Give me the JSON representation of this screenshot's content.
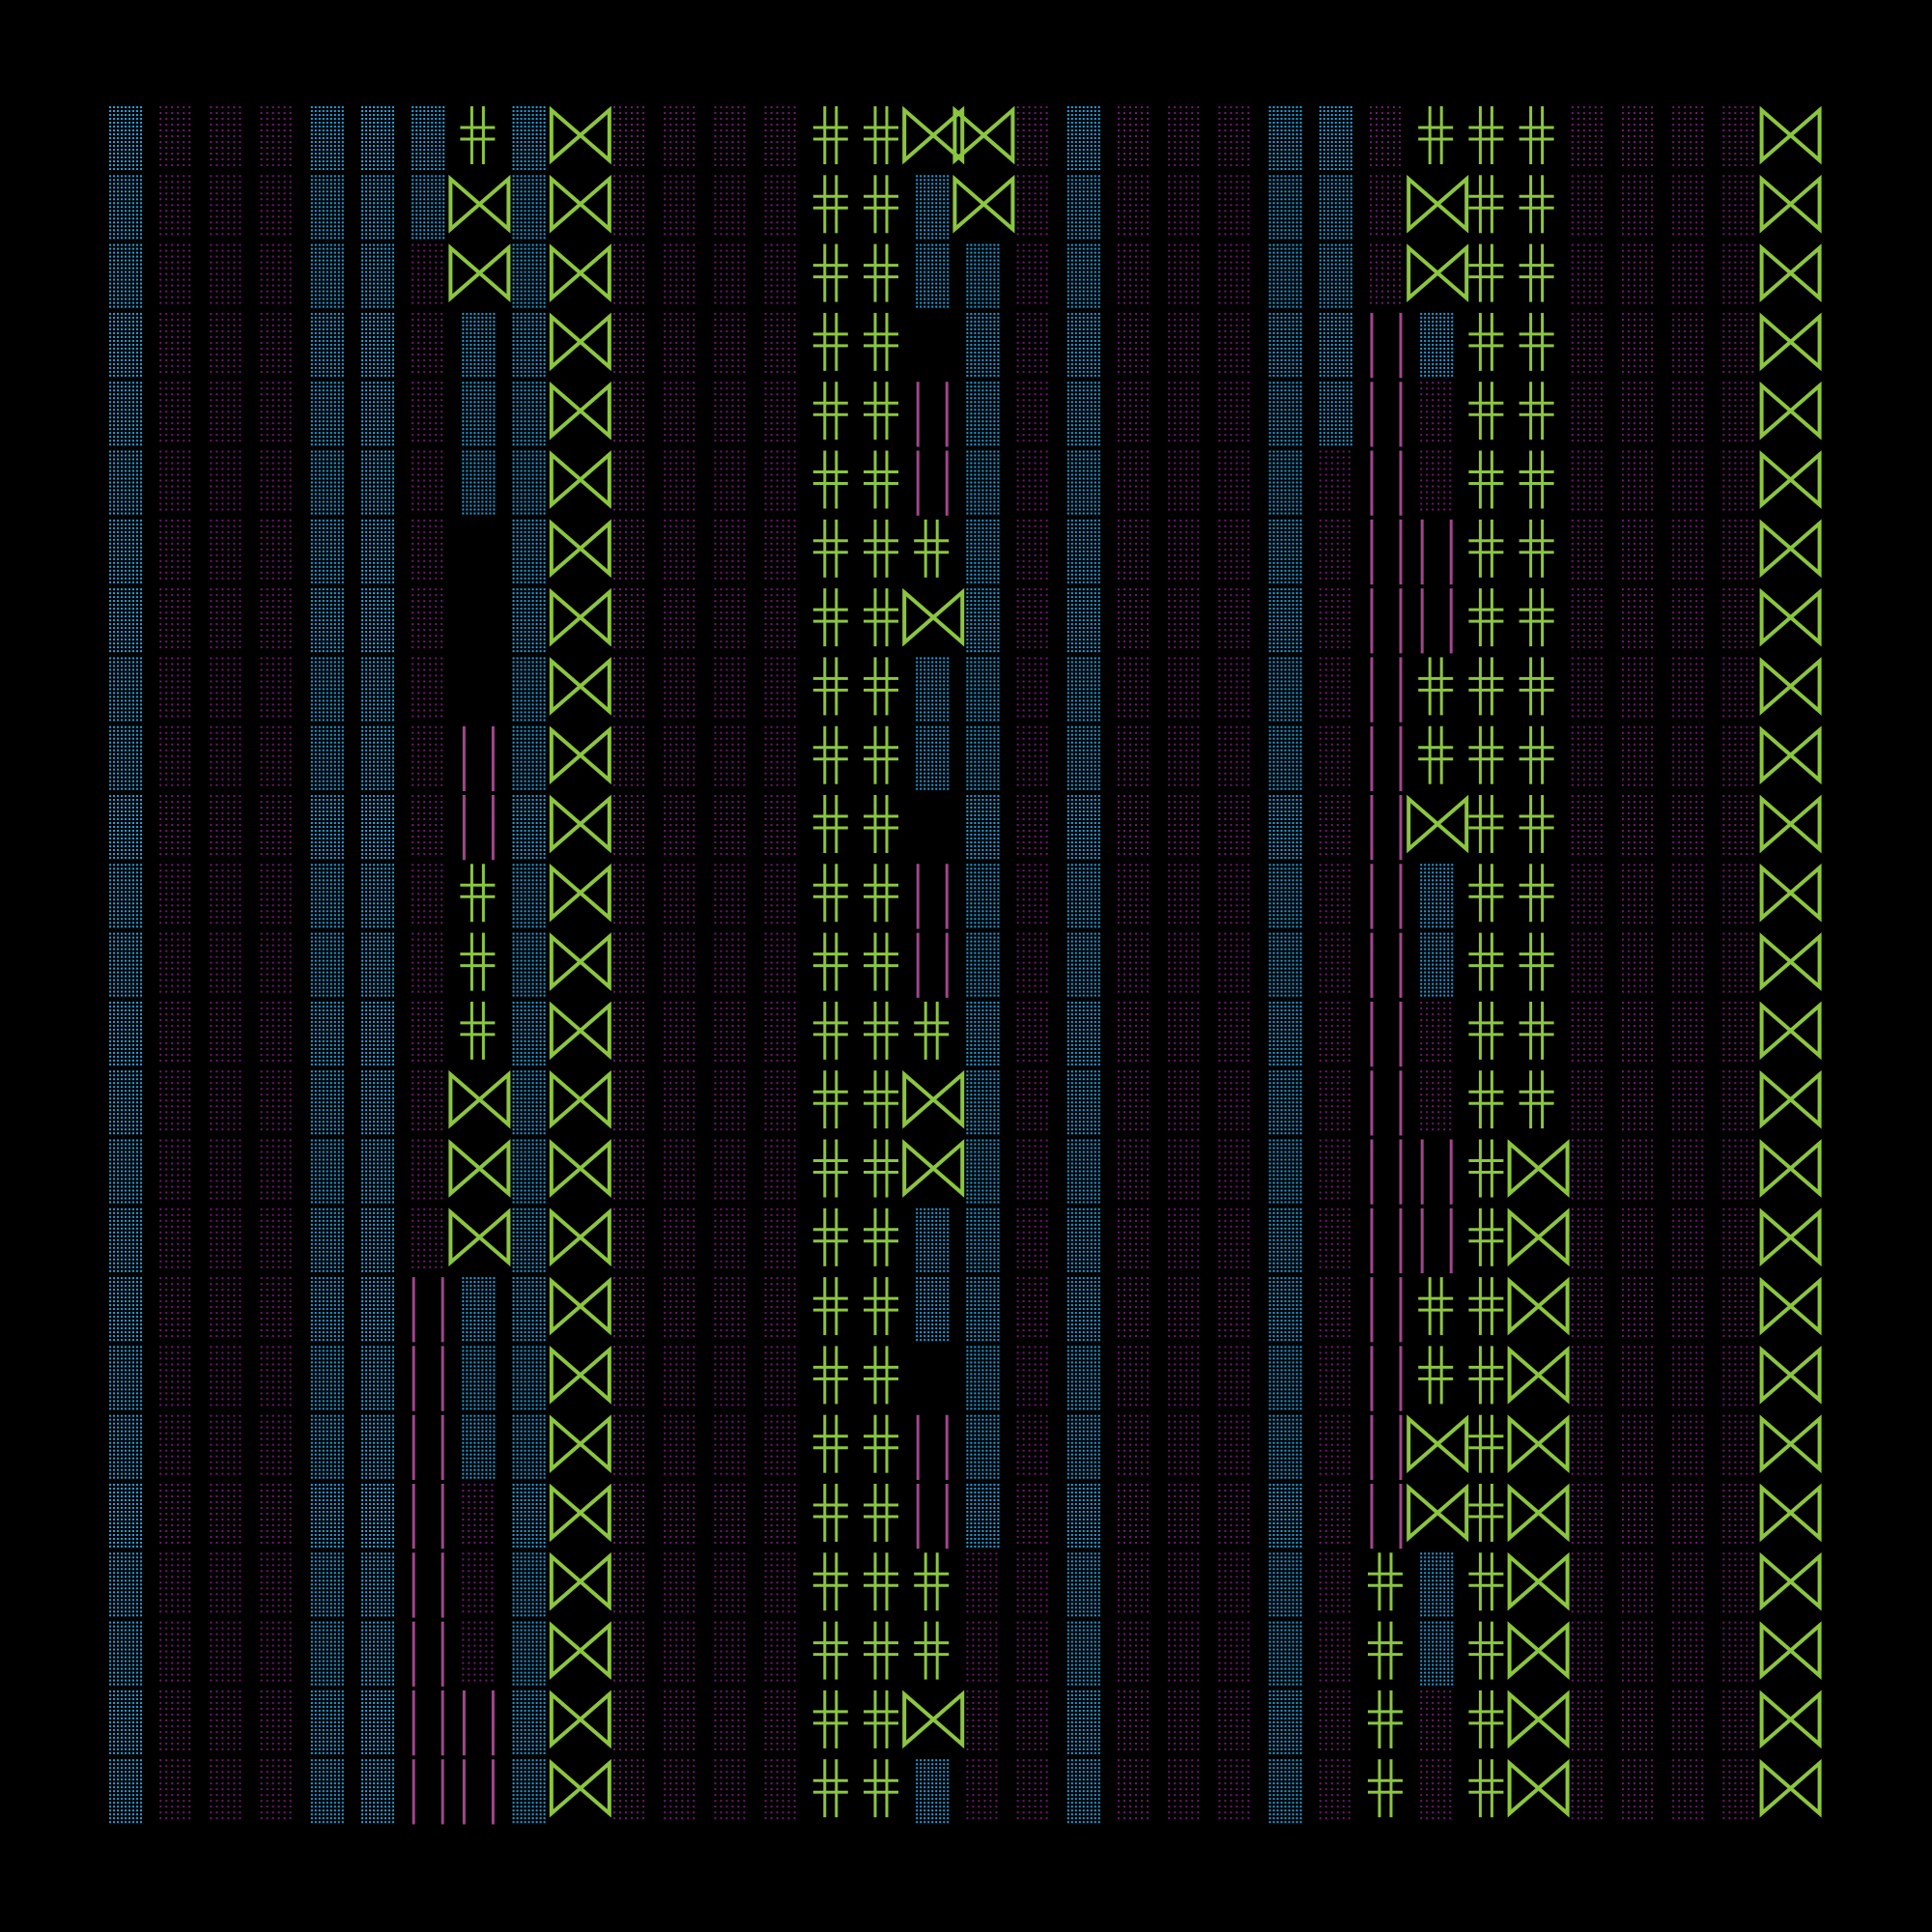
{
  "colors": {
    "background": "#000000",
    "blue": "#1aa3e0",
    "purple": "#6e1a6e",
    "green": "#8cc63f",
    "pink": "#a0468c",
    "teal": "#1c8fbf"
  },
  "grid": {
    "cols": 34,
    "rows": 25
  },
  "glyph_kinds": [
    "blue-dots",
    "purple-dots",
    "bowtie",
    "double-cross",
    "double-bar",
    "blank"
  ],
  "columns": [
    {
      "kind": "blue-dots"
    },
    {
      "kind": "purple-dots"
    },
    {
      "kind": "purple-dots"
    },
    {
      "kind": "purple-dots"
    },
    {
      "kind": "blue-dots"
    },
    {
      "kind": "blue-dots"
    },
    {
      "kind": "mixed-a"
    },
    {
      "kind": "mixed-b"
    },
    {
      "kind": "blue-dots"
    },
    {
      "kind": "bowtie"
    },
    {
      "kind": "purple-dots"
    },
    {
      "kind": "purple-dots"
    },
    {
      "kind": "purple-dots"
    },
    {
      "kind": "purple-dots"
    },
    {
      "kind": "double-cross"
    },
    {
      "kind": "double-cross"
    },
    {
      "kind": "mixed-c"
    },
    {
      "kind": "mixed-d"
    },
    {
      "kind": "purple-dots"
    },
    {
      "kind": "blue-dots"
    },
    {
      "kind": "purple-dots"
    },
    {
      "kind": "purple-dots"
    },
    {
      "kind": "purple-dots"
    },
    {
      "kind": "blue-dots"
    },
    {
      "kind": "mixed-e"
    },
    {
      "kind": "mixed-f"
    },
    {
      "kind": "mixed-g"
    },
    {
      "kind": "mixed-h"
    },
    {
      "kind": "mixed-i"
    },
    {
      "kind": "purple-dots"
    },
    {
      "kind": "purple-dots"
    },
    {
      "kind": "purple-dots"
    },
    {
      "kind": "purple-dots"
    },
    {
      "kind": "bowtie-edge"
    }
  ],
  "cells": {
    "col6": [
      "blue-dots",
      "blue-dots",
      "purple-dots",
      "purple-dots",
      "purple-dots",
      "purple-dots",
      "purple-dots",
      "purple-dots",
      "purple-dots",
      "purple-dots",
      "purple-dots",
      "purple-dots",
      "purple-dots",
      "purple-dots",
      "purple-dots",
      "purple-dots",
      "purple-dots",
      "double-bar",
      "double-bar",
      "double-bar",
      "double-bar",
      "double-bar",
      "double-bar",
      "double-bar",
      "double-bar"
    ],
    "col7": [
      "double-cross",
      "bowtie",
      "bowtie",
      "blue-dots",
      "blue-dots",
      "blue-dots",
      "blank",
      "blank",
      "blank",
      "double-bar",
      "double-bar",
      "double-cross",
      "double-cross",
      "double-cross",
      "bowtie",
      "bowtie",
      "bowtie",
      "blue-dots",
      "blue-dots",
      "blue-dots",
      "purple-dots",
      "purple-dots",
      "purple-dots",
      "double-bar",
      "double-bar"
    ],
    "col16": [
      "bowtie",
      "blue-dots",
      "blue-dots",
      "blank",
      "double-bar",
      "double-bar",
      "double-cross",
      "bowtie",
      "blue-dots",
      "blue-dots",
      "blank",
      "double-bar",
      "double-bar",
      "double-cross",
      "bowtie",
      "bowtie",
      "blue-dots",
      "blue-dots",
      "blank",
      "double-bar",
      "double-bar",
      "double-cross",
      "double-cross",
      "bowtie",
      "blue-dots"
    ],
    "col17": [
      "bowtie",
      "bowtie",
      "blue-dots",
      "blue-dots",
      "blue-dots",
      "blue-dots",
      "blue-dots",
      "blue-dots",
      "blue-dots",
      "blue-dots",
      "blue-dots",
      "blue-dots",
      "blue-dots",
      "blue-dots",
      "blue-dots",
      "blue-dots",
      "blue-dots",
      "blue-dots",
      "blue-dots",
      "blue-dots",
      "blue-dots",
      "purple-dots",
      "purple-dots",
      "purple-dots",
      "purple-dots"
    ],
    "col24": [
      "blue-dots",
      "blue-dots",
      "blue-dots",
      "blue-dots",
      "blue-dots",
      "purple-dots",
      "purple-dots",
      "purple-dots",
      "purple-dots",
      "purple-dots",
      "purple-dots",
      "purple-dots",
      "purple-dots",
      "purple-dots",
      "purple-dots",
      "purple-dots",
      "purple-dots",
      "purple-dots",
      "purple-dots",
      "purple-dots",
      "purple-dots",
      "purple-dots",
      "purple-dots",
      "purple-dots",
      "purple-dots"
    ],
    "col25": [
      "purple-dots",
      "purple-dots",
      "purple-dots",
      "double-bar",
      "double-bar",
      "double-bar",
      "double-bar",
      "double-bar",
      "double-bar",
      "double-bar",
      "double-bar",
      "double-bar",
      "double-bar",
      "double-bar",
      "double-bar",
      "double-bar",
      "double-bar",
      "double-bar",
      "double-bar",
      "double-bar",
      "double-bar",
      "double-cross",
      "double-cross",
      "double-cross",
      "double-cross"
    ],
    "col26": [
      "double-cross",
      "bowtie",
      "bowtie",
      "blue-dots",
      "purple-dots",
      "purple-dots",
      "double-bar",
      "double-bar",
      "double-cross",
      "double-cross",
      "bowtie",
      "blue-dots",
      "blue-dots",
      "purple-dots",
      "purple-dots",
      "double-bar",
      "double-bar",
      "double-cross",
      "double-cross",
      "bowtie",
      "bowtie",
      "blue-dots",
      "blue-dots",
      "purple-dots",
      "purple-dots"
    ],
    "col27": [
      "double-cross",
      "double-cross",
      "double-cross",
      "double-cross",
      "double-cross",
      "double-cross",
      "double-cross",
      "double-cross",
      "double-cross",
      "double-cross",
      "double-cross",
      "double-cross",
      "double-cross",
      "double-cross",
      "double-cross",
      "double-cross",
      "double-cross",
      "double-cross",
      "double-cross",
      "double-cross",
      "double-cross",
      "double-cross",
      "double-cross",
      "double-cross",
      "double-cross"
    ],
    "col28": [
      "double-cross",
      "double-cross",
      "double-cross",
      "double-cross",
      "double-cross",
      "double-cross",
      "double-cross",
      "double-cross",
      "double-cross",
      "double-cross",
      "double-cross",
      "double-cross",
      "double-cross",
      "double-cross",
      "double-cross",
      "bowtie",
      "bowtie",
      "bowtie",
      "bowtie",
      "bowtie",
      "bowtie",
      "bowtie",
      "bowtie",
      "bowtie",
      "bowtie"
    ]
  }
}
